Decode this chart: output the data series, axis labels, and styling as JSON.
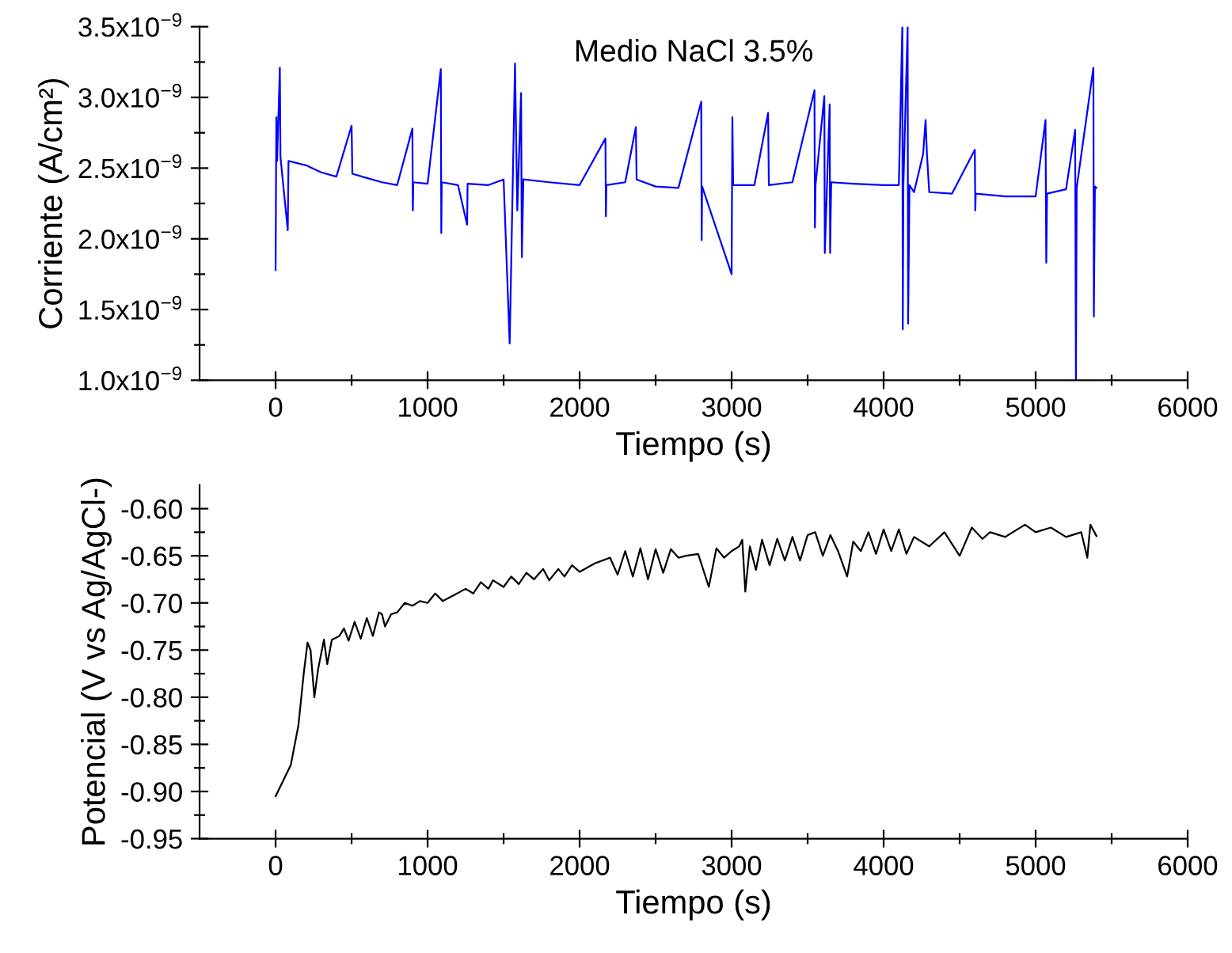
{
  "chart_data": [
    {
      "type": "line",
      "title": "Medio NaCl 3.5%",
      "xlabel": "Tiempo (s)",
      "ylabel": "Corriente (A/cm²)",
      "series": [
        {
          "color": "#0000ff",
          "x": [
            0,
            5,
            10,
            28,
            32,
            80,
            85,
            200,
            300,
            400,
            500,
            505,
            600,
            700,
            800,
            900,
            903,
            906,
            1000,
            1087,
            1090,
            1093,
            1200,
            1260,
            1263,
            1400,
            1500,
            1540,
            1575,
            1590,
            1615,
            1620,
            1630,
            1800,
            2000,
            2170,
            2173,
            2176,
            2300,
            2370,
            2375,
            2500,
            2650,
            2800,
            2803,
            2806,
            3000,
            3005,
            3010,
            3150,
            3240,
            3245,
            3400,
            3545,
            3548,
            3552,
            3610,
            3613,
            3645,
            3648,
            3655,
            3800,
            4000,
            4100,
            4123,
            4126,
            4130,
            4158,
            4161,
            4170,
            4200,
            4260,
            4276,
            4285,
            4300,
            4450,
            4600,
            4603,
            4606,
            4800,
            5000,
            5065,
            5070,
            5075,
            5200,
            5260,
            5265,
            5270,
            5380,
            5383,
            5390,
            5400
          ],
          "values": [
            1.78e-09,
            2.86e-09,
            2.55e-09,
            3.21e-09,
            2.58e-09,
            2.06e-09,
            2.55e-09,
            2.52e-09,
            2.47e-09,
            2.44e-09,
            2.8e-09,
            2.46e-09,
            2.43e-09,
            2.4e-09,
            2.38e-09,
            2.78e-09,
            2.2e-09,
            2.4e-09,
            2.39e-09,
            3.2e-09,
            2.04e-09,
            2.4e-09,
            2.38e-09,
            2.1e-09,
            2.39e-09,
            2.38e-09,
            2.42e-09,
            1.26e-09,
            3.24e-09,
            2.2e-09,
            3.03e-09,
            1.87e-09,
            2.42e-09,
            2.4e-09,
            2.38e-09,
            2.71e-09,
            2.16e-09,
            2.38e-09,
            2.4e-09,
            2.79e-09,
            2.42e-09,
            2.37e-09,
            2.36e-09,
            2.97e-09,
            1.99e-09,
            2.37e-09,
            1.75e-09,
            2.86e-09,
            2.38e-09,
            2.38e-09,
            2.89e-09,
            2.38e-09,
            2.4e-09,
            3.05e-09,
            2.08e-09,
            2.38e-09,
            3.01e-09,
            1.9e-09,
            2.95e-09,
            1.9e-09,
            2.4e-09,
            2.39e-09,
            2.38e-09,
            2.38e-09,
            3.5e-09,
            1.36e-09,
            2.38e-09,
            3.5e-09,
            1.4e-09,
            2.38e-09,
            2.33e-09,
            2.6e-09,
            2.84e-09,
            2.6e-09,
            2.33e-09,
            2.32e-09,
            2.63e-09,
            2.2e-09,
            2.32e-09,
            2.3e-09,
            2.3e-09,
            2.84e-09,
            1.83e-09,
            2.32e-09,
            2.35e-09,
            2.77e-09,
            1e-09,
            2.36e-09,
            3.21e-09,
            1.45e-09,
            2.37e-09,
            2.36e-09
          ]
        }
      ],
      "xlim": [
        -500,
        6000
      ],
      "xticks": [
        0,
        {
          "value": 500,
          "label": null
        },
        1000,
        {
          "value": 1500,
          "label": null
        },
        2000,
        {
          "value": 2500,
          "label": null
        },
        3000,
        {
          "value": 3500,
          "label": null
        },
        4000,
        {
          "value": 4500,
          "label": null
        },
        5000,
        {
          "value": 5500,
          "label": null
        },
        6000
      ],
      "ylim": [
        1e-09,
        3.5e-09
      ],
      "yticks": [
        {
          "value": 1e-09,
          "label": "1.0x10$^{−9}$"
        },
        {
          "value": 1.25e-09,
          "label": null
        },
        {
          "value": 1.5e-09,
          "label": "1.5x10$^{−9}$"
        },
        {
          "value": 1.75e-09,
          "label": null
        },
        {
          "value": 2e-09,
          "label": "2.0x10$^{−9}$"
        },
        {
          "value": 2.25e-09,
          "label": null
        },
        {
          "value": 2.5e-09,
          "label": "2.5x10$^{−9}$"
        },
        {
          "value": 2.75e-09,
          "label": null
        },
        {
          "value": 3e-09,
          "label": "3.0x10$^{−9}$"
        },
        {
          "value": 3.25e-09,
          "label": null
        },
        {
          "value": 3.5e-09,
          "label": "3.5x10$^{−9}$"
        }
      ],
      "grid": false
    },
    {
      "type": "line",
      "xlabel": "Tiempo (s)",
      "ylabel": "Potencial (V vs Ag/AgCl-)",
      "series": [
        {
          "color": "#000000",
          "x": [
            0,
            100,
            150,
            185,
            210,
            230,
            255,
            280,
            318,
            340,
            370,
            420,
            450,
            480,
            520,
            560,
            600,
            640,
            680,
            700,
            720,
            760,
            800,
            850,
            900,
            950,
            1000,
            1050,
            1100,
            1170,
            1250,
            1300,
            1350,
            1400,
            1430,
            1500,
            1550,
            1600,
            1650,
            1700,
            1760,
            1800,
            1860,
            1900,
            1950,
            2000,
            2100,
            2200,
            2250,
            2300,
            2350,
            2400,
            2450,
            2500,
            2550,
            2600,
            2650,
            2700,
            2780,
            2850,
            2900,
            2950,
            3000,
            3050,
            3070,
            3090,
            3120,
            3160,
            3200,
            3250,
            3300,
            3350,
            3400,
            3450,
            3500,
            3550,
            3600,
            3650,
            3700,
            3760,
            3800,
            3850,
            3900,
            3950,
            4000,
            4050,
            4100,
            4150,
            4200,
            4300,
            4400,
            4500,
            4580,
            4650,
            4700,
            4800,
            4930,
            5000,
            5100,
            5200,
            5300,
            5340,
            5360,
            5400
          ],
          "values": [
            -0.905,
            -0.872,
            -0.83,
            -0.775,
            -0.742,
            -0.75,
            -0.8,
            -0.77,
            -0.739,
            -0.765,
            -0.739,
            -0.735,
            -0.727,
            -0.74,
            -0.72,
            -0.738,
            -0.716,
            -0.735,
            -0.71,
            -0.712,
            -0.725,
            -0.712,
            -0.71,
            -0.7,
            -0.703,
            -0.698,
            -0.7,
            -0.69,
            -0.698,
            -0.692,
            -0.685,
            -0.69,
            -0.678,
            -0.685,
            -0.676,
            -0.683,
            -0.672,
            -0.68,
            -0.668,
            -0.675,
            -0.664,
            -0.676,
            -0.664,
            -0.672,
            -0.66,
            -0.667,
            -0.658,
            -0.652,
            -0.67,
            -0.645,
            -0.672,
            -0.642,
            -0.675,
            -0.643,
            -0.668,
            -0.643,
            -0.652,
            -0.65,
            -0.648,
            -0.683,
            -0.642,
            -0.652,
            -0.645,
            -0.64,
            -0.633,
            -0.688,
            -0.64,
            -0.665,
            -0.633,
            -0.66,
            -0.632,
            -0.655,
            -0.63,
            -0.655,
            -0.628,
            -0.625,
            -0.65,
            -0.628,
            -0.645,
            -0.672,
            -0.635,
            -0.645,
            -0.625,
            -0.648,
            -0.622,
            -0.645,
            -0.622,
            -0.648,
            -0.63,
            -0.64,
            -0.625,
            -0.65,
            -0.62,
            -0.632,
            -0.625,
            -0.63,
            -0.617,
            -0.625,
            -0.62,
            -0.63,
            -0.625,
            -0.652,
            -0.617,
            -0.629
          ]
        }
      ],
      "xlim": [
        -500,
        6000
      ],
      "xticks": [
        0,
        {
          "value": 500,
          "label": null
        },
        1000,
        {
          "value": 1500,
          "label": null
        },
        2000,
        {
          "value": 2500,
          "label": null
        },
        3000,
        {
          "value": 3500,
          "label": null
        },
        4000,
        {
          "value": 4500,
          "label": null
        },
        5000,
        {
          "value": 5500,
          "label": null
        },
        6000
      ],
      "ylim": [
        -0.95,
        -0.575
      ],
      "yticks": [
        {
          "value": -0.95,
          "label": "-0.95"
        },
        {
          "value": -0.925,
          "label": null
        },
        {
          "value": -0.9,
          "label": "-0.90"
        },
        {
          "value": -0.875,
          "label": null
        },
        {
          "value": -0.85,
          "label": "-0.85"
        },
        {
          "value": -0.825,
          "label": null
        },
        {
          "value": -0.8,
          "label": "-0.80"
        },
        {
          "value": -0.775,
          "label": null
        },
        {
          "value": -0.75,
          "label": "-0.75"
        },
        {
          "value": -0.725,
          "label": null
        },
        {
          "value": -0.7,
          "label": "-0.70"
        },
        {
          "value": -0.675,
          "label": null
        },
        {
          "value": -0.65,
          "label": "-0.65"
        },
        {
          "value": -0.625,
          "label": null
        },
        {
          "value": -0.6,
          "label": "-0.60"
        }
      ],
      "grid": false
    }
  ]
}
